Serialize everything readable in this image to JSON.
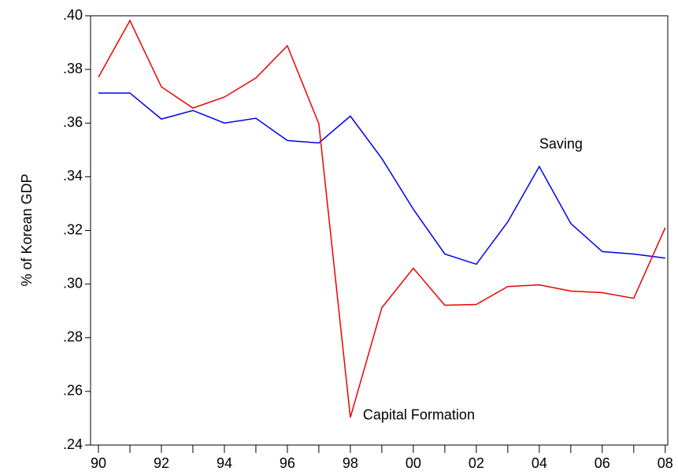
{
  "chart_data": {
    "type": "line",
    "y_label": "% of Korean GDP",
    "x": [
      1990,
      1991,
      1992,
      1993,
      1994,
      1995,
      1996,
      1997,
      1998,
      1999,
      2000,
      2001,
      2002,
      2003,
      2004,
      2005,
      2006,
      2007,
      2008
    ],
    "series": [
      {
        "name": "Saving",
        "color": "#0000ee",
        "values": [
          0.3712,
          0.3712,
          0.3615,
          0.3647,
          0.36,
          0.3618,
          0.3535,
          0.3526,
          0.3626,
          0.3468,
          0.3279,
          0.3112,
          0.3074,
          0.3232,
          0.3438,
          0.3226,
          0.3121,
          0.3112,
          0.3097
        ]
      },
      {
        "name": "Capital Formation",
        "color": "#ee0000",
        "values": [
          0.3771,
          0.3982,
          0.3735,
          0.3656,
          0.3697,
          0.3768,
          0.3888,
          0.3597,
          0.2503,
          0.2912,
          0.3059,
          0.2921,
          0.2924,
          0.2991,
          0.2997,
          0.2974,
          0.2968,
          0.2947,
          0.321
        ]
      }
    ],
    "annotations": [
      {
        "text": "Saving",
        "x": 2004,
        "y": 0.352
      },
      {
        "text": "Capital Formation",
        "x": 1998.4,
        "y": 0.251
      }
    ],
    "xlim": [
      1989.75,
      2008.08
    ],
    "ylim": [
      0.24,
      0.4
    ],
    "xticks": [
      {
        "value": 1990,
        "label": "90"
      },
      {
        "value": 1992,
        "label": "92"
      },
      {
        "value": 1994,
        "label": "94"
      },
      {
        "value": 1996,
        "label": "96"
      },
      {
        "value": 1998,
        "label": "98"
      },
      {
        "value": 2000,
        "label": "00"
      },
      {
        "value": 2002,
        "label": "02"
      },
      {
        "value": 2004,
        "label": "04"
      },
      {
        "value": 2006,
        "label": "06"
      },
      {
        "value": 2008,
        "label": "08"
      }
    ],
    "xminor_ticks": [
      1991,
      1993,
      1995,
      1997,
      1999,
      2001,
      2003,
      2005,
      2007
    ],
    "yticks": [
      {
        "value": 0.24,
        "label": ".24"
      },
      {
        "value": 0.26,
        "label": ".26"
      },
      {
        "value": 0.28,
        "label": ".28"
      },
      {
        "value": 0.3,
        "label": ".30"
      },
      {
        "value": 0.32,
        "label": ".32"
      },
      {
        "value": 0.34,
        "label": ".34"
      },
      {
        "value": 0.36,
        "label": ".36"
      },
      {
        "value": 0.38,
        "label": ".38"
      },
      {
        "value": 0.4,
        "label": ".40"
      }
    ],
    "grid": false
  }
}
